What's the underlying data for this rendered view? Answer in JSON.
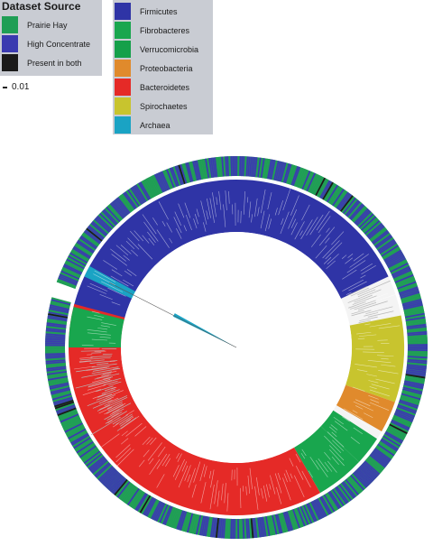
{
  "legend_source": {
    "title": "Dataset Source",
    "items": [
      {
        "label": "Prairie Hay",
        "color": "#1f9e55"
      },
      {
        "label": "High Concentrate",
        "color": "#3a3ab0"
      },
      {
        "label": "Present in both",
        "color": "#1a1a1a"
      }
    ]
  },
  "legend_phyla": {
    "items": [
      {
        "label": "Firmicutes",
        "color": "#2f34a6"
      },
      {
        "label": "Fibrobacteres",
        "color": "#19a64e"
      },
      {
        "label": "Verrucomicrobia",
        "color": "#15a04a"
      },
      {
        "label": "Proteobacteria",
        "color": "#e08a2c"
      },
      {
        "label": "Bacteroidetes",
        "color": "#e52a27"
      },
      {
        "label": "Spirochaetes",
        "color": "#c8c42e"
      },
      {
        "label": "Archaea",
        "color": "#1aa3c4"
      }
    ]
  },
  "scale_bar": {
    "label": "0.01"
  },
  "tree": {
    "clades": [
      {
        "name": "Firmicutes",
        "color": "#2f34a6",
        "start": -76,
        "end": 65
      },
      {
        "name": "Spirochaetes",
        "color": "#c8c42e",
        "start": 79,
        "end": 109
      },
      {
        "name": "Proteobacteria",
        "color": "#e08a2c",
        "start": 109,
        "end": 120
      },
      {
        "name": "Verrucomicrobia",
        "color": "#19a64e",
        "start": 123,
        "end": 133
      },
      {
        "name": "Fibrobacteres",
        "color": "#19a64e",
        "start": 133,
        "end": 150
      },
      {
        "name": "Bacteroidetes",
        "color": "#e52a27",
        "start": 150,
        "end": 285
      },
      {
        "name": "Fibrobacteres",
        "color": "#19a64e",
        "start": -90,
        "end": -76
      },
      {
        "name": "Archaea",
        "color": "#1aa3c4",
        "start": 295,
        "end": 299
      }
    ],
    "ring_colors": [
      "#1f9e55",
      "#3a3ab0",
      "#1a1a1a"
    ],
    "gap": {
      "start": 285,
      "end": 290
    }
  }
}
